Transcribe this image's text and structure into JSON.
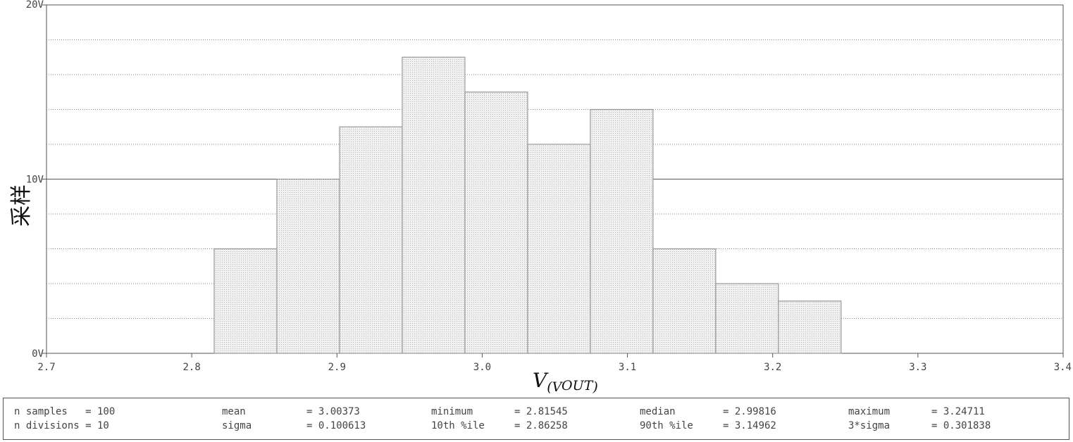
{
  "chart_data": {
    "type": "bar",
    "title": "",
    "xlabel": "V",
    "xlabel_sub": "(V",
    "xlabel_subsub": "OUT",
    "xlabel_close": ")",
    "ylabel": "采样",
    "xlim": [
      2.7,
      3.4
    ],
    "ylim": [
      0,
      20
    ],
    "x_ticks": [
      "2.7",
      "2.8",
      "2.9",
      "3.0",
      "3.1",
      "3.2",
      "3.3",
      "3.4"
    ],
    "y_ticks": [
      "0V",
      "10V",
      "20V"
    ],
    "bins": [
      {
        "x0": 2.81545,
        "x1": 2.85862,
        "count": 6
      },
      {
        "x0": 2.85862,
        "x1": 2.90178,
        "count": 10
      },
      {
        "x0": 2.90178,
        "x1": 2.94495,
        "count": 13
      },
      {
        "x0": 2.94495,
        "x1": 2.98811,
        "count": 17
      },
      {
        "x0": 2.98811,
        "x1": 3.03128,
        "count": 15
      },
      {
        "x0": 3.03128,
        "x1": 3.07444,
        "count": 12
      },
      {
        "x0": 3.07444,
        "x1": 3.11761,
        "count": 14
      },
      {
        "x0": 3.11761,
        "x1": 3.16078,
        "count": 6
      },
      {
        "x0": 3.16078,
        "x1": 3.20394,
        "count": 4
      },
      {
        "x0": 3.20394,
        "x1": 3.24711,
        "count": 3
      }
    ],
    "grid": true,
    "bar_color": "#ececec",
    "bar_edge": "#999999"
  },
  "stats": [
    [
      "n samples   = 100",
      "n divisions = 10"
    ],
    [
      "mean",
      "sigma"
    ],
    [
      "= 3.00373",
      "= 0.100613"
    ],
    [
      "minimum",
      "10th %ile"
    ],
    [
      "= 2.81545",
      "= 2.86258"
    ],
    [
      "median",
      "90th %ile"
    ],
    [
      "= 2.99816",
      "= 3.14962"
    ],
    [
      "maximum",
      "3*sigma"
    ],
    [
      "= 3.24711",
      "= 0.301838"
    ]
  ]
}
